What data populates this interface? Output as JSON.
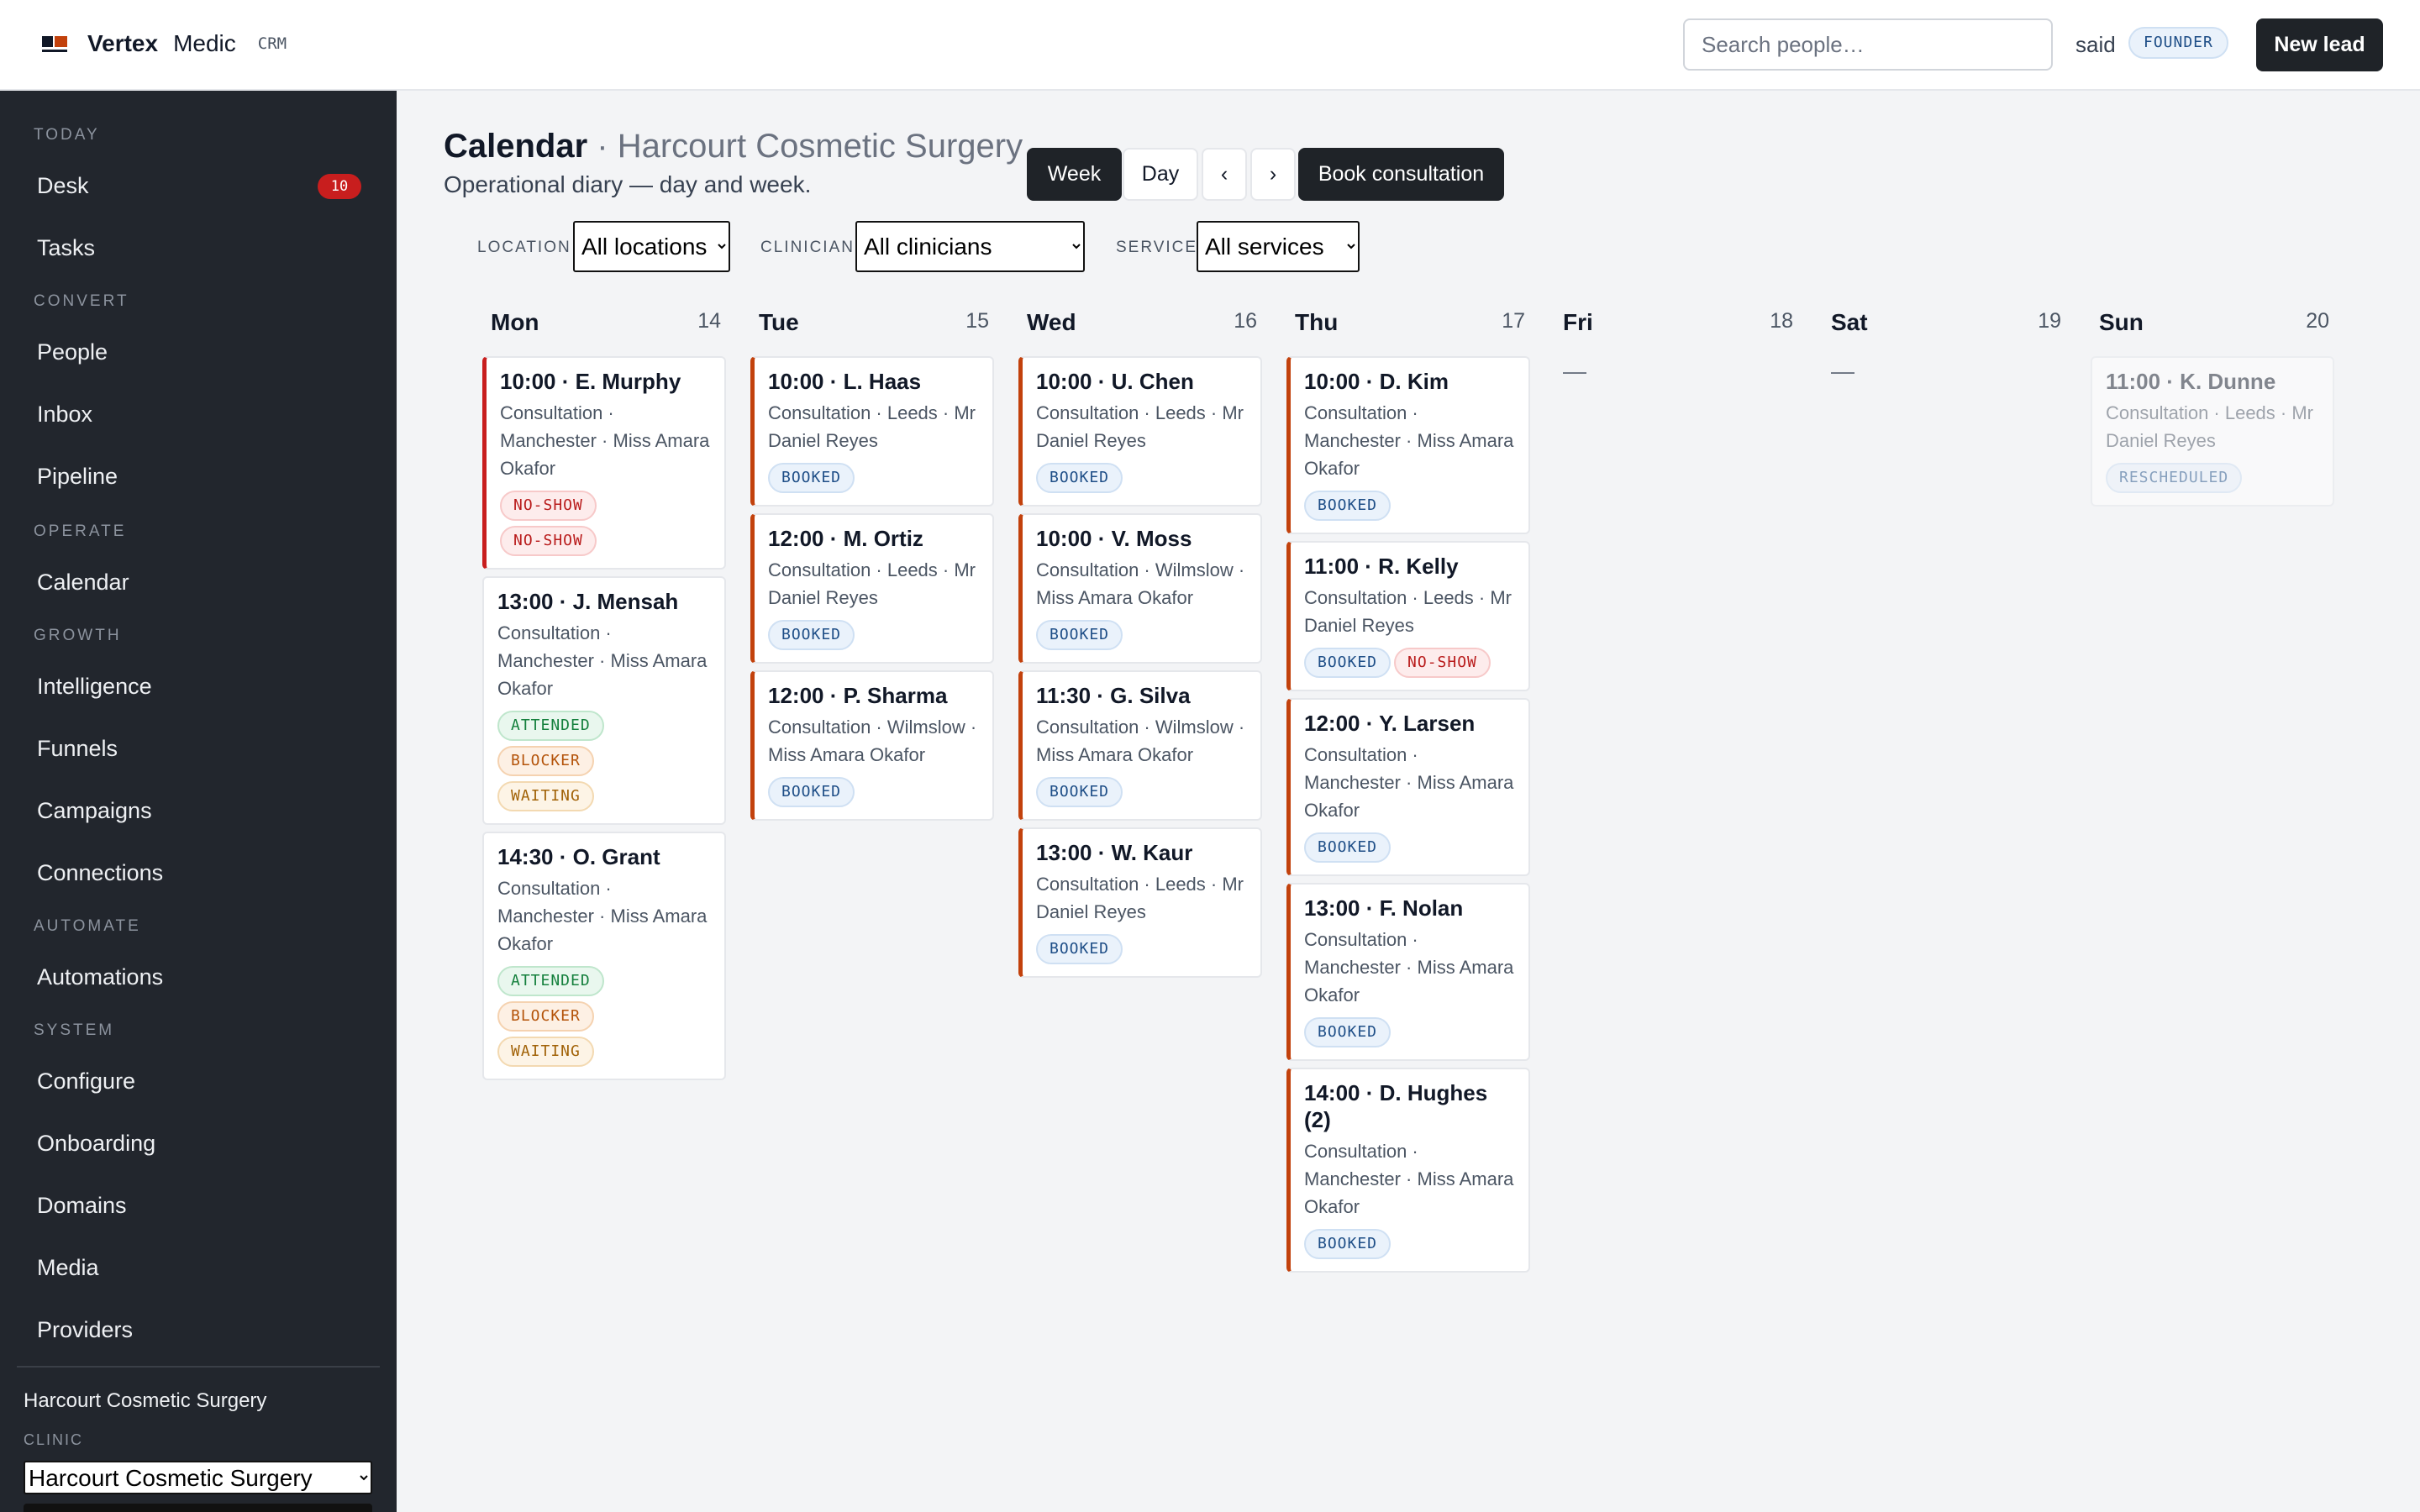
{
  "header": {
    "brand_name": "Vertex",
    "brand_product": "Medic",
    "brand_tag": "CRM",
    "search_placeholder": "Search people…",
    "user_name": "said",
    "role": "FOUNDER",
    "new_lead_label": "New lead"
  },
  "sidebar": {
    "sections": {
      "today": "TODAY",
      "convert": "CONVERT",
      "operate": "OPERATE",
      "growth": "GROWTH",
      "automate": "AUTOMATE",
      "system": "SYSTEM"
    },
    "items": {
      "desk": "Desk",
      "desk_count": "10",
      "tasks": "Tasks",
      "people": "People",
      "inbox": "Inbox",
      "pipeline": "Pipeline",
      "calendar": "Calendar",
      "intelligence": "Intelligence",
      "funnels": "Funnels",
      "campaigns": "Campaigns",
      "connections": "Connections",
      "automations": "Automations",
      "configure": "Configure",
      "onboarding": "Onboarding",
      "domains": "Domains",
      "media": "Media",
      "providers": "Providers"
    },
    "clinic_name": "Harcourt Cosmetic Surgery",
    "clinic_label": "CLINIC",
    "clinic_select": "Harcourt Cosmetic Surgery"
  },
  "main": {
    "title": "Calendar",
    "separator": " · ",
    "clinic": "Harcourt Cosmetic Surgery",
    "subtitle": "Operational diary — day and week.",
    "buttons": {
      "week": "Week",
      "day": "Day",
      "prev": "‹",
      "next": "›",
      "book": "Book consultation"
    },
    "filters": {
      "location_label": "LOCATION",
      "location_value": "All locations",
      "clinician_label": "CLINICIAN",
      "clinician_value": "All clinicians",
      "service_label": "SERVICE",
      "service_value": "All services"
    }
  },
  "days": [
    {
      "name": "Mon",
      "num": "14",
      "empty": "",
      "appointments": [
        {
          "title": "10:00 · E. Murphy",
          "detail": "Consultation · Manchester · Miss Amara Okafor",
          "accent": "red",
          "badges": [
            {
              "label": "NO-SHOW",
              "kind": "noshow"
            },
            {
              "label": "NO-SHOW",
              "kind": "noshow"
            }
          ]
        },
        {
          "title": "13:00 · J. Mensah",
          "detail": "Consultation · Manchester · Miss Amara Okafor",
          "accent": "none",
          "badges": [
            {
              "label": "ATTENDED",
              "kind": "attended"
            },
            {
              "label": "BLOCKER",
              "kind": "blocker"
            },
            {
              "label": "WAITING",
              "kind": "waiting"
            }
          ]
        },
        {
          "title": "14:30 · O. Grant",
          "detail": "Consultation · Manchester · Miss Amara Okafor",
          "accent": "none",
          "badges": [
            {
              "label": "ATTENDED",
              "kind": "attended"
            },
            {
              "label": "BLOCKER",
              "kind": "blocker"
            },
            {
              "label": "WAITING",
              "kind": "waiting"
            }
          ]
        }
      ]
    },
    {
      "name": "Tue",
      "num": "15",
      "empty": "",
      "appointments": [
        {
          "title": "10:00 · L. Haas",
          "detail": "Consultation · Leeds · Mr Daniel Reyes",
          "accent": "orange",
          "badges": [
            {
              "label": "BOOKED",
              "kind": "booked"
            }
          ]
        },
        {
          "title": "12:00 · M. Ortiz",
          "detail": "Consultation · Leeds · Mr Daniel Reyes",
          "accent": "orange",
          "badges": [
            {
              "label": "BOOKED",
              "kind": "booked"
            }
          ]
        },
        {
          "title": "12:00 · P. Sharma",
          "detail": "Consultation · Wilmslow · Miss Amara Okafor",
          "accent": "orange",
          "badges": [
            {
              "label": "BOOKED",
              "kind": "booked"
            }
          ]
        }
      ]
    },
    {
      "name": "Wed",
      "num": "16",
      "empty": "",
      "appointments": [
        {
          "title": "10:00 · U. Chen",
          "detail": "Consultation · Leeds · Mr Daniel Reyes",
          "accent": "orange",
          "badges": [
            {
              "label": "BOOKED",
              "kind": "booked"
            }
          ]
        },
        {
          "title": "10:00 · V. Moss",
          "detail": "Consultation · Wilmslow · Miss Amara Okafor",
          "accent": "orange",
          "badges": [
            {
              "label": "BOOKED",
              "kind": "booked"
            }
          ]
        },
        {
          "title": "11:30 · G. Silva",
          "detail": "Consultation · Wilmslow · Miss Amara Okafor",
          "accent": "orange",
          "badges": [
            {
              "label": "BOOKED",
              "kind": "booked"
            }
          ]
        },
        {
          "title": "13:00 · W. Kaur",
          "detail": "Consultation · Leeds · Mr Daniel Reyes",
          "accent": "orange",
          "badges": [
            {
              "label": "BOOKED",
              "kind": "booked"
            }
          ]
        }
      ]
    },
    {
      "name": "Thu",
      "num": "17",
      "empty": "",
      "appointments": [
        {
          "title": "10:00 · D. Kim",
          "detail": "Consultation · Manchester · Miss Amara Okafor",
          "accent": "orange",
          "badges": [
            {
              "label": "BOOKED",
              "kind": "booked"
            }
          ]
        },
        {
          "title": "11:00 · R. Kelly",
          "detail": "Consultation · Leeds · Mr Daniel Reyes",
          "accent": "orange",
          "badges": [
            {
              "label": "BOOKED",
              "kind": "booked"
            },
            {
              "label": "NO-SHOW",
              "kind": "noshow"
            }
          ]
        },
        {
          "title": "12:00 · Y. Larsen",
          "detail": "Consultation · Manchester · Miss Amara Okafor",
          "accent": "orange",
          "badges": [
            {
              "label": "BOOKED",
              "kind": "booked"
            }
          ]
        },
        {
          "title": "13:00 · F. Nolan",
          "detail": "Consultation · Manchester · Miss Amara Okafor",
          "accent": "orange",
          "badges": [
            {
              "label": "BOOKED",
              "kind": "booked"
            }
          ]
        },
        {
          "title": "14:00 · D. Hughes (2)",
          "detail": "Consultation · Manchester · Miss Amara Okafor",
          "accent": "orange",
          "badges": [
            {
              "label": "BOOKED",
              "kind": "booked"
            }
          ]
        }
      ]
    },
    {
      "name": "Fri",
      "num": "18",
      "empty": "—",
      "appointments": []
    },
    {
      "name": "Sat",
      "num": "19",
      "empty": "—",
      "appointments": []
    },
    {
      "name": "Sun",
      "num": "20",
      "empty": "",
      "appointments": [
        {
          "title": "11:00 · K. Dunne",
          "detail": "Consultation · Leeds · Mr Daniel Reyes",
          "accent": "faded",
          "badges": [
            {
              "label": "RESCHEDULED",
              "kind": "rescheduled"
            }
          ]
        }
      ]
    }
  ]
}
